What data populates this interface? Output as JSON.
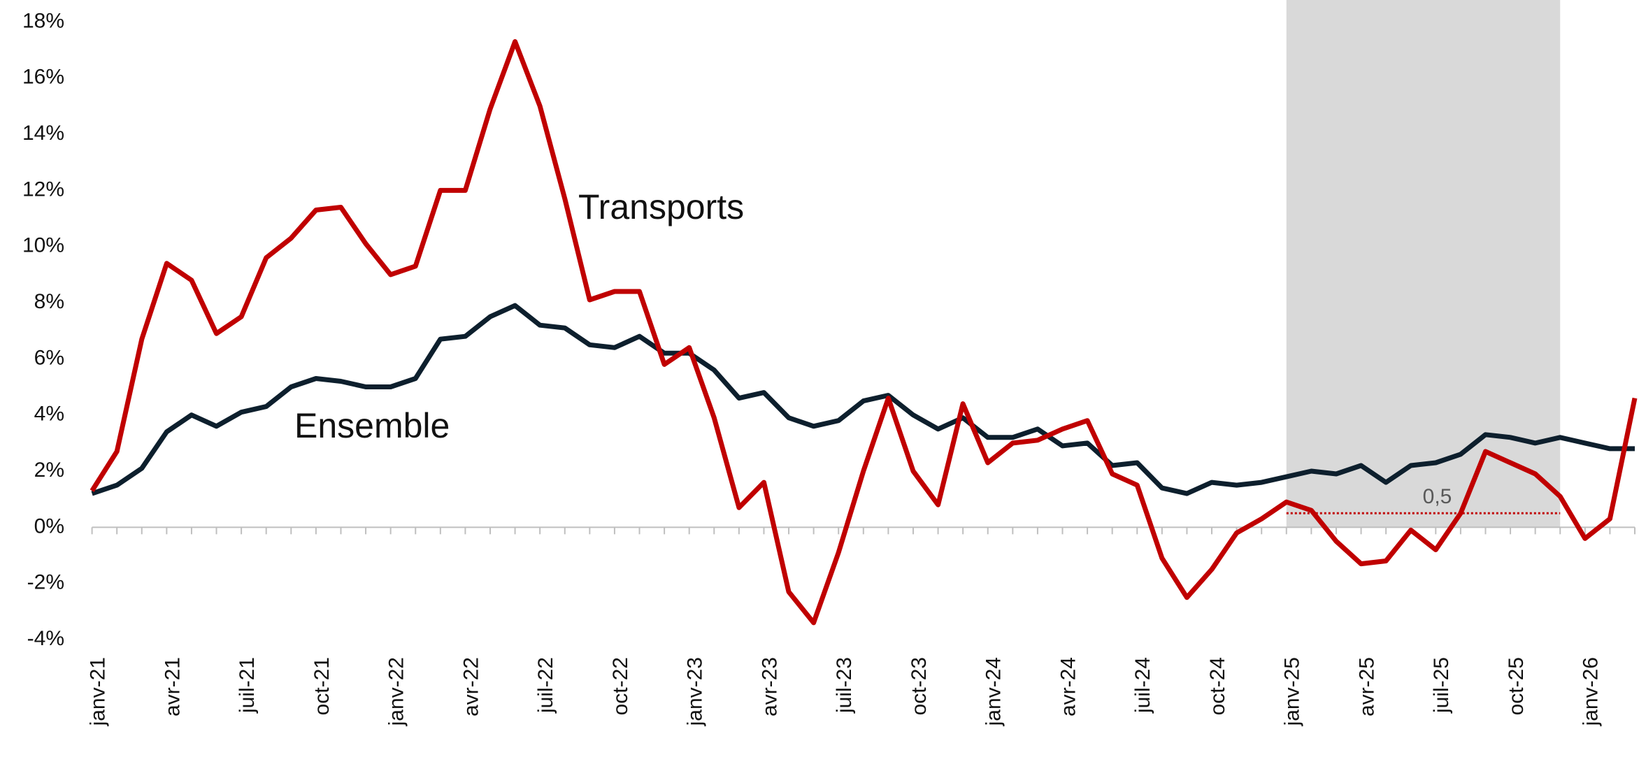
{
  "chart_data": {
    "type": "line",
    "categories": [
      "janv-21",
      null,
      null,
      "avr-21",
      null,
      null,
      "juil-21",
      null,
      null,
      "oct-21",
      null,
      null,
      "janv-22",
      null,
      null,
      "avr-22",
      null,
      null,
      "juil-22",
      null,
      null,
      "oct-22",
      null,
      null,
      "janv-23",
      null,
      null,
      "avr-23",
      null,
      null,
      "juil-23",
      null,
      null,
      "oct-23",
      null,
      null,
      "janv-24",
      null,
      null,
      "avr-24",
      null,
      null,
      "juil-24",
      null,
      null,
      "oct-24",
      null,
      null,
      "janv-25",
      null,
      null,
      "avr-25",
      null,
      null,
      "juil-25",
      null,
      null,
      "oct-25",
      null,
      null,
      "janv-26",
      null,
      null
    ],
    "series": [
      {
        "name": "Transports",
        "color": "#c00000",
        "values": [
          1.3,
          2.7,
          6.7,
          9.4,
          8.8,
          6.9,
          7.5,
          9.6,
          10.3,
          11.3,
          11.4,
          10.1,
          9.0,
          9.3,
          12.0,
          12.0,
          14.9,
          17.3,
          15.0,
          11.7,
          8.1,
          8.4,
          8.4,
          5.8,
          6.4,
          3.9,
          0.7,
          1.6,
          -2.3,
          -3.4,
          -0.9,
          2.0,
          4.6,
          2.0,
          0.8,
          4.4,
          2.3,
          3.0,
          3.1,
          3.5,
          3.8,
          1.9,
          1.5,
          -1.1,
          -2.5,
          -1.5,
          -0.2,
          0.3,
          0.9,
          0.6,
          -0.5,
          -1.3,
          -1.2,
          -0.1,
          -0.8,
          0.5,
          2.7,
          2.3,
          1.9,
          1.1,
          -0.4,
          0.3,
          4.6
        ]
      },
      {
        "name": "Ensemble",
        "color": "#0d1f2d",
        "values": [
          1.2,
          1.5,
          2.1,
          3.4,
          4.0,
          3.6,
          4.1,
          4.3,
          5.0,
          5.3,
          5.2,
          5.0,
          5.0,
          5.3,
          6.7,
          6.8,
          7.5,
          7.9,
          7.2,
          7.1,
          6.5,
          6.4,
          6.8,
          6.2,
          6.2,
          5.6,
          4.6,
          4.8,
          3.9,
          3.6,
          3.8,
          4.5,
          4.7,
          4.0,
          3.5,
          3.9,
          3.2,
          3.2,
          3.5,
          2.9,
          3.0,
          2.2,
          2.3,
          1.4,
          1.2,
          1.6,
          1.5,
          1.6,
          1.8,
          2.0,
          1.9,
          2.2,
          1.6,
          2.2,
          2.3,
          2.6,
          3.3,
          3.2,
          3.0,
          3.2,
          3.0,
          2.8,
          2.8
        ]
      }
    ],
    "ylim": [
      -4,
      18
    ],
    "yticks": [
      {
        "value": -4,
        "label": "-4%"
      },
      {
        "value": -2,
        "label": "-2%"
      },
      {
        "value": 0,
        "label": "0%"
      },
      {
        "value": 2,
        "label": "2%"
      },
      {
        "value": 4,
        "label": "4%"
      },
      {
        "value": 6,
        "label": "6%"
      },
      {
        "value": 8,
        "label": "8%"
      },
      {
        "value": 10,
        "label": "10%"
      },
      {
        "value": 12,
        "label": "12%"
      },
      {
        "value": 14,
        "label": "14%"
      },
      {
        "value": 16,
        "label": "16%"
      },
      {
        "value": 18,
        "label": "18%"
      }
    ],
    "shaded_range": [
      48,
      59
    ],
    "reference_line": {
      "value": 0.5,
      "label": "0,5",
      "color": "#c00000",
      "range": [
        48,
        59
      ]
    },
    "grid": false
  }
}
